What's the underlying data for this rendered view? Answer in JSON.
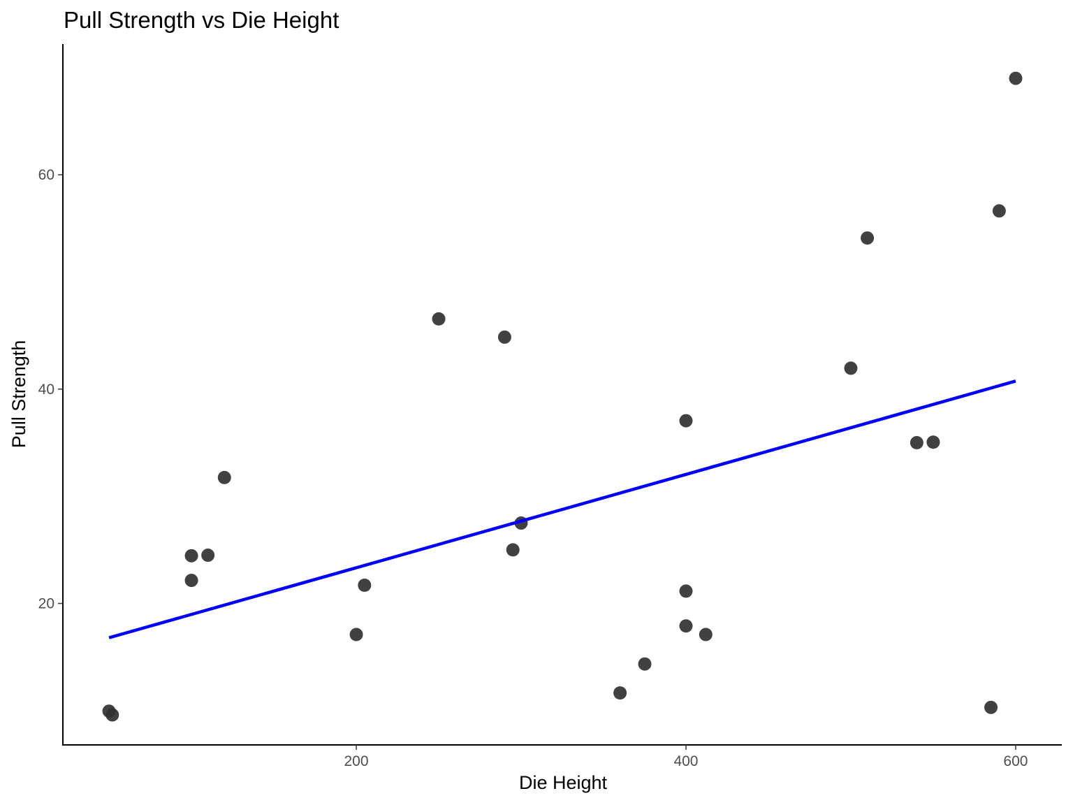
{
  "chart_data": {
    "type": "scatter",
    "title": "Pull Strength vs Die Height",
    "xlabel": "Die Height",
    "ylabel": "Pull Strength",
    "xlim": [
      22,
      628
    ],
    "ylim": [
      6.8,
      72.2
    ],
    "x_ticks": [
      {
        "value": 200,
        "label": "200"
      },
      {
        "value": 400,
        "label": "400"
      },
      {
        "value": 600,
        "label": "600"
      }
    ],
    "y_ticks": [
      {
        "value": 20,
        "label": "20"
      },
      {
        "value": 40,
        "label": "40"
      },
      {
        "value": 60,
        "label": "60"
      }
    ],
    "grid": false,
    "legend": "none",
    "point_color": "#333333",
    "line_color": "#0000ff",
    "points": [
      {
        "x": 50,
        "y": 9.95
      },
      {
        "x": 52,
        "y": 9.6
      },
      {
        "x": 100,
        "y": 24.45
      },
      {
        "x": 100,
        "y": 22.15
      },
      {
        "x": 110,
        "y": 24.5
      },
      {
        "x": 120,
        "y": 31.75
      },
      {
        "x": 200,
        "y": 17.1
      },
      {
        "x": 205,
        "y": 21.7
      },
      {
        "x": 250,
        "y": 46.55
      },
      {
        "x": 290,
        "y": 44.85
      },
      {
        "x": 295,
        "y": 25.0
      },
      {
        "x": 300,
        "y": 27.5
      },
      {
        "x": 360,
        "y": 11.65
      },
      {
        "x": 375,
        "y": 14.35
      },
      {
        "x": 400,
        "y": 37.05
      },
      {
        "x": 400,
        "y": 21.15
      },
      {
        "x": 400,
        "y": 17.9
      },
      {
        "x": 412,
        "y": 17.1
      },
      {
        "x": 500,
        "y": 41.95
      },
      {
        "x": 510,
        "y": 54.1
      },
      {
        "x": 540,
        "y": 35.0
      },
      {
        "x": 550,
        "y": 35.05
      },
      {
        "x": 585,
        "y": 10.3
      },
      {
        "x": 590,
        "y": 56.63
      },
      {
        "x": 600,
        "y": 69.0
      }
    ],
    "fit_line": {
      "x": [
        50,
        600
      ],
      "y": [
        16.8,
        40.75
      ]
    }
  }
}
